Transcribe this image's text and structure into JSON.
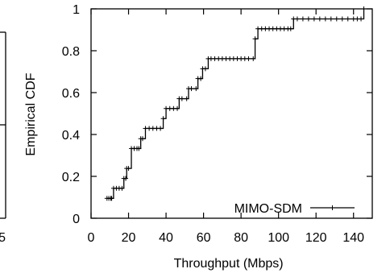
{
  "chart_data": [
    {
      "type": "line",
      "title": "",
      "partial": true,
      "x_tick_labels": [
        "5"
      ],
      "series": []
    },
    {
      "type": "line",
      "title": "",
      "xlabel": "Throughput (Mbps)",
      "ylabel": "Empirical CDF",
      "xlim": [
        0,
        150
      ],
      "ylim": [
        0,
        1
      ],
      "x_ticks": [
        0,
        20,
        40,
        60,
        80,
        100,
        120,
        140
      ],
      "y_ticks": [
        0,
        0.2,
        0.4,
        0.6,
        0.8,
        1
      ],
      "x_tick_labels": [
        "0",
        "20",
        "40",
        "60",
        "80",
        "100",
        "120",
        "140"
      ],
      "y_tick_labels": [
        "0",
        "0.2",
        "0.4",
        "0.6",
        "0.8",
        "1"
      ],
      "grid": false,
      "legend_position": "bottom-right",
      "step": true,
      "series": [
        {
          "name": "MIMO-SDM",
          "color": "#000000",
          "marker": "plus",
          "points": [
            [
              8.5,
              0.095
            ],
            [
              11,
              0.095
            ],
            [
              12,
              0.143
            ],
            [
              16.5,
              0.143
            ],
            [
              17.5,
              0.19
            ],
            [
              19,
              0.238
            ],
            [
              21.5,
              0.333
            ],
            [
              25.5,
              0.333
            ],
            [
              26.5,
              0.38
            ],
            [
              29,
              0.429
            ],
            [
              37,
              0.429
            ],
            [
              38.5,
              0.476
            ],
            [
              40,
              0.524
            ],
            [
              46,
              0.524
            ],
            [
              47,
              0.571
            ],
            [
              51,
              0.571
            ],
            [
              52,
              0.619
            ],
            [
              56,
              0.619
            ],
            [
              57,
              0.667
            ],
            [
              59.5,
              0.714
            ],
            [
              62.5,
              0.762
            ],
            [
              86.5,
              0.762
            ],
            [
              87.5,
              0.857
            ],
            [
              89,
              0.905
            ],
            [
              106.5,
              0.905
            ],
            [
              108,
              0.952
            ],
            [
              144,
              0.952
            ],
            [
              145.5,
              1.0
            ]
          ],
          "marker_x": [
            8.5,
            9.5,
            10.5,
            11,
            12,
            13.5,
            15,
            16.5,
            17.5,
            18.5,
            19,
            20,
            21.5,
            23,
            24.5,
            25.5,
            26.5,
            27.5,
            29,
            31,
            33,
            35,
            37,
            38.5,
            40,
            42,
            44,
            46,
            47,
            48.5,
            51,
            52,
            53.5,
            56,
            57,
            58.5,
            59.5,
            61,
            62.5,
            64,
            66,
            68,
            70,
            72,
            74,
            76,
            78,
            80,
            82,
            84,
            86.5,
            87.5,
            89,
            91,
            93,
            95,
            97,
            99,
            101,
            103,
            105,
            106.5,
            108,
            110,
            113,
            116,
            119,
            122,
            125,
            128,
            131,
            134,
            137,
            140,
            142,
            144,
            145.5
          ]
        }
      ]
    }
  ]
}
